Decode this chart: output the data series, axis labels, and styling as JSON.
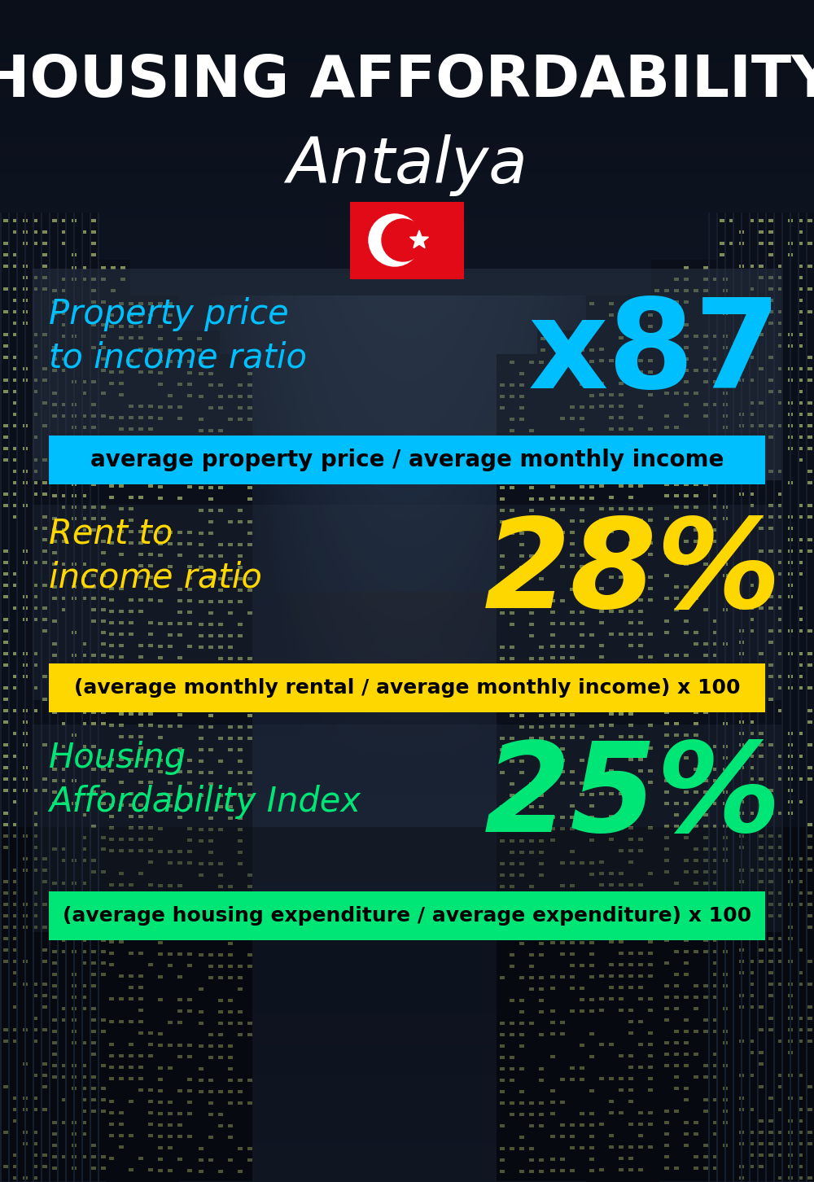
{
  "title_line1": "HOUSING AFFORDABILITY",
  "title_line2": "Antalya",
  "bg_color": "#0a0f1a",
  "section1_label": "Property price\nto income ratio",
  "section1_value": "x87",
  "section1_label_color": "#00bfff",
  "section1_value_color": "#00bfff",
  "section1_banner_text": "average property price / average monthly income",
  "section1_banner_bg": "#00bfff",
  "section1_banner_text_color": "#000000",
  "section2_label": "Rent to\nincome ratio",
  "section2_value": "28%",
  "section2_label_color": "#ffd700",
  "section2_value_color": "#ffd700",
  "section2_banner_text": "(average monthly rental / average monthly income) x 100",
  "section2_banner_bg": "#ffd700",
  "section2_banner_text_color": "#000000",
  "section3_label": "Housing\nAffordability Index",
  "section3_value": "25%",
  "section3_label_color": "#00e676",
  "section3_value_color": "#00e676",
  "section3_banner_text": "(average housing expenditure / average expenditure) x 100",
  "section3_banner_bg": "#00e676",
  "section3_banner_text_color": "#000000",
  "title_color": "#ffffff",
  "city_color": "#ffffff",
  "flag_red": "#e30a17",
  "flag_white": "#ffffff"
}
